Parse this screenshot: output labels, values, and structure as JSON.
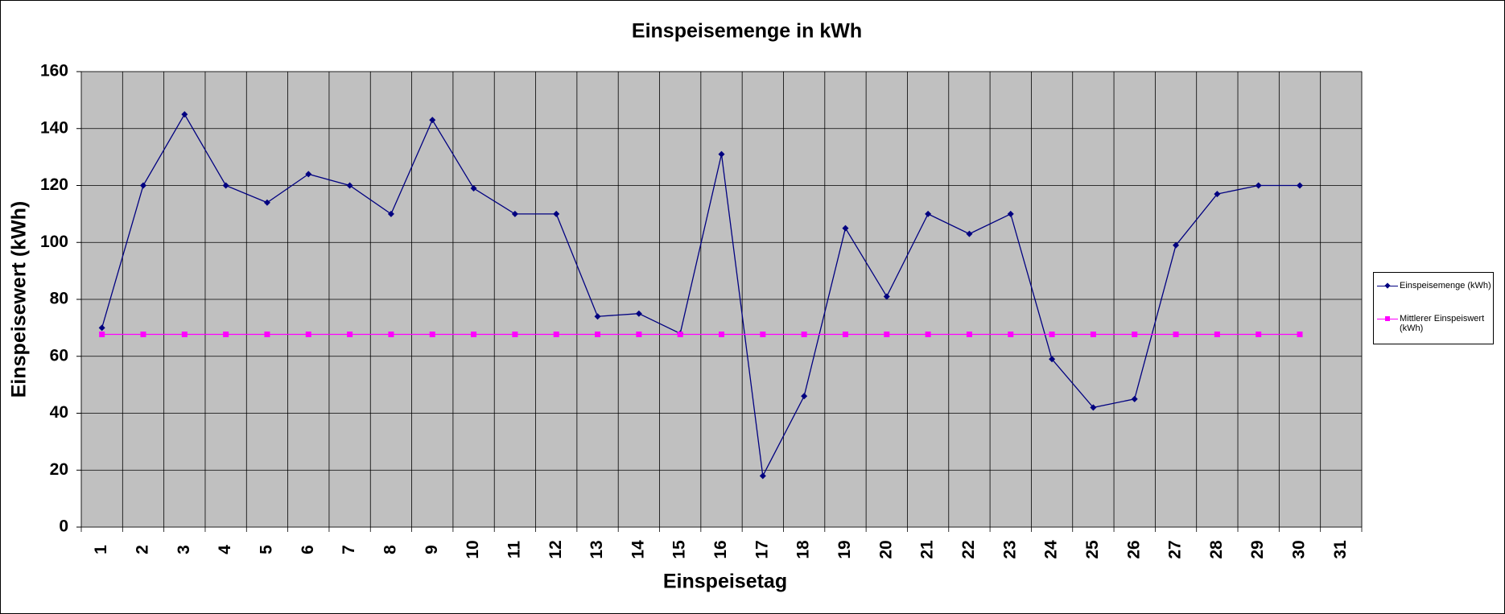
{
  "chart_data": {
    "type": "line",
    "title": "Einspeisemenge in kWh",
    "x_label": "Einspeisetag",
    "y_label": "Einspeisewert  (kWh)",
    "categories": [
      "1",
      "2",
      "3",
      "4",
      "5",
      "6",
      "7",
      "8",
      "9",
      "10",
      "11",
      "12",
      "13",
      "14",
      "15",
      "16",
      "17",
      "18",
      "19",
      "20",
      "21",
      "22",
      "23",
      "24",
      "25",
      "26",
      "27",
      "28",
      "29",
      "30",
      "31"
    ],
    "series": [
      {
        "name": "Einspeisemenge (kWh)",
        "color": "#000080",
        "marker": "diamond",
        "values": [
          70,
          120,
          145,
          120,
          114,
          124,
          120,
          110,
          143,
          119,
          110,
          110,
          74,
          75,
          68,
          131,
          18,
          46,
          105,
          81,
          110,
          103,
          110,
          59,
          42,
          45,
          99,
          117,
          120,
          120,
          null
        ]
      },
      {
        "name": "Mittlerer Einspeiswert (kWh)",
        "color": "#ff00ff",
        "marker": "square",
        "values": [
          67.7,
          67.7,
          67.7,
          67.7,
          67.7,
          67.7,
          67.7,
          67.7,
          67.7,
          67.7,
          67.7,
          67.7,
          67.7,
          67.7,
          67.7,
          67.7,
          67.7,
          67.7,
          67.7,
          67.7,
          67.7,
          67.7,
          67.7,
          67.7,
          67.7,
          67.7,
          67.7,
          67.7,
          67.7,
          67.7,
          null
        ]
      }
    ],
    "ylim": [
      0,
      160
    ],
    "yticks": [
      0,
      20,
      40,
      60,
      80,
      100,
      120,
      140,
      160
    ],
    "grid": true,
    "legend": "right",
    "plot_background": "#c0c0c0"
  }
}
